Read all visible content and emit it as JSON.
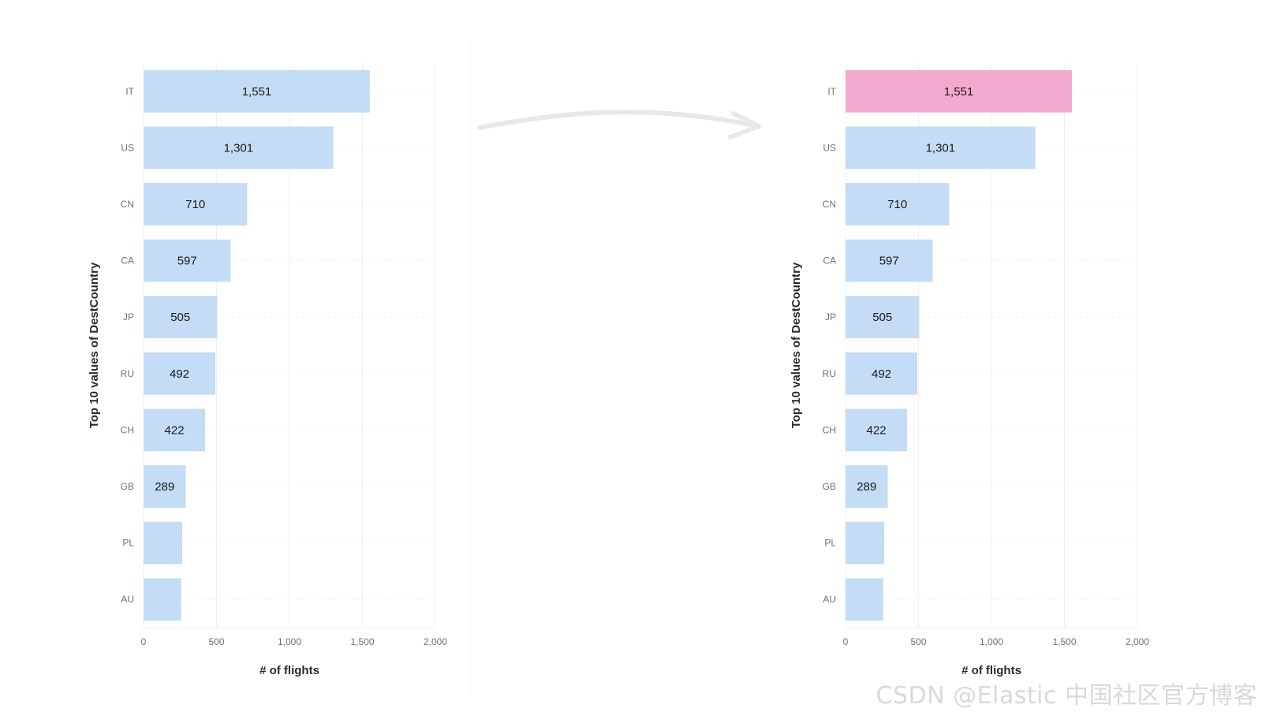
{
  "charts": [
    {
      "chart_data": {
        "type": "bar",
        "orientation": "horizontal",
        "categories": [
          "IT",
          "US",
          "CN",
          "CA",
          "JP",
          "RU",
          "CH",
          "GB",
          "PL",
          "AU"
        ],
        "values": [
          1551,
          1301,
          710,
          597,
          505,
          492,
          422,
          289,
          265,
          258
        ],
        "data_labels": [
          "1,551",
          "1,301",
          "710",
          "597",
          "505",
          "492",
          "422",
          "289",
          "",
          ""
        ],
        "xlabel": "# of flights",
        "ylabel": "Top 10 values of DestCountry",
        "xlim": [
          0,
          2000
        ],
        "xticks": [
          "0",
          "500",
          "1,000",
          "1,500",
          "2,000"
        ],
        "xtick_values": [
          0,
          500,
          1000,
          1500,
          2000
        ],
        "grid": "vertical",
        "bar_color": "#c4dcf5",
        "highlight_index": null,
        "highlight_color": null
      }
    },
    {
      "chart_data": {
        "type": "bar",
        "orientation": "horizontal",
        "categories": [
          "IT",
          "US",
          "CN",
          "CA",
          "JP",
          "RU",
          "CH",
          "GB",
          "PL",
          "AU"
        ],
        "values": [
          1551,
          1301,
          710,
          597,
          505,
          492,
          422,
          289,
          265,
          258
        ],
        "data_labels": [
          "1,551",
          "1,301",
          "710",
          "597",
          "505",
          "492",
          "422",
          "289",
          "",
          ""
        ],
        "xlabel": "# of flights",
        "ylabel": "Top 10 values of DestCountry",
        "xlim": [
          0,
          2000
        ],
        "xticks": [
          "0",
          "500",
          "1,000",
          "1,500",
          "2,000"
        ],
        "xtick_values": [
          0,
          500,
          1000,
          1500,
          2000
        ],
        "grid": "vertical",
        "bar_color": "#c4dcf5",
        "highlight_index": 0,
        "highlight_color": "#f4a9cf"
      }
    }
  ],
  "arrow": {
    "color": "#e8e8e8",
    "icon": "right-arrow-icon"
  },
  "watermark": "CSDN @Elastic 中国社区官方博客",
  "colors": {
    "label": "#6f6f6f",
    "bold_text": "#2b2b2b",
    "grid": "#eef0f3",
    "value_text": "#1a1a1a"
  }
}
